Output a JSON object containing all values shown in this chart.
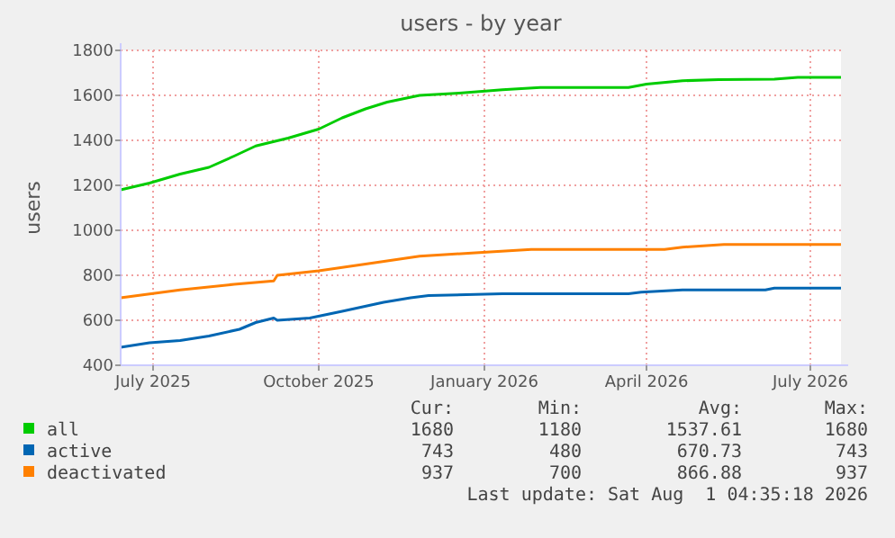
{
  "chart_data": {
    "type": "line",
    "title": "users - by year",
    "ylabel": "users",
    "xlim": [
      "2025-06-27",
      "2026-08-01"
    ],
    "xticks": [
      {
        "value": "2025-07-15",
        "label": "July 2025"
      },
      {
        "value": "2025-10-15",
        "label": "October 2025"
      },
      {
        "value": "2026-01-15",
        "label": "January 2026"
      },
      {
        "value": "2026-04-15",
        "label": "April 2026"
      },
      {
        "value": "2026-07-15",
        "label": "July 2026"
      }
    ],
    "ylim": [
      400,
      1800
    ],
    "yticks": [
      400,
      600,
      800,
      1000,
      1200,
      1400,
      1600,
      1800
    ],
    "grid": true,
    "legend": "bottom",
    "line_style": "solid",
    "series": [
      {
        "name": "all",
        "color": "#00cc00",
        "x": [
          "2025-06-27",
          "2025-07-13",
          "2025-07-30",
          "2025-08-15",
          "2025-08-29",
          "2025-09-10",
          "2025-09-28",
          "2025-10-15",
          "2025-10-28",
          "2025-11-10",
          "2025-11-22",
          "2025-12-10",
          "2026-01-01",
          "2026-01-25",
          "2026-02-15",
          "2026-04-05",
          "2026-04-15",
          "2026-05-05",
          "2026-05-25",
          "2026-06-25",
          "2026-07-08",
          "2026-08-01"
        ],
        "values": [
          1180,
          1210,
          1250,
          1280,
          1330,
          1375,
          1410,
          1450,
          1500,
          1540,
          1570,
          1600,
          1610,
          1625,
          1635,
          1635,
          1650,
          1665,
          1670,
          1672,
          1680,
          1680
        ]
      },
      {
        "name": "active",
        "color": "#0066b3",
        "x": [
          "2025-06-27",
          "2025-07-13",
          "2025-07-30",
          "2025-08-15",
          "2025-09-01",
          "2025-09-10",
          "2025-09-20",
          "2025-09-22",
          "2025-10-10",
          "2025-10-28",
          "2025-11-20",
          "2025-12-05",
          "2025-12-15",
          "2026-01-25",
          "2026-04-05",
          "2026-04-12",
          "2026-05-05",
          "2026-06-20",
          "2026-06-25",
          "2026-08-01"
        ],
        "values": [
          480,
          500,
          510,
          530,
          560,
          590,
          610,
          600,
          610,
          640,
          680,
          700,
          710,
          718,
          718,
          725,
          735,
          735,
          743,
          743
        ]
      },
      {
        "name": "deactivated",
        "color": "#ff8000",
        "x": [
          "2025-06-27",
          "2025-07-30",
          "2025-08-29",
          "2025-09-20",
          "2025-09-22",
          "2025-10-15",
          "2025-11-10",
          "2025-12-10",
          "2026-01-10",
          "2026-02-10",
          "2026-04-25",
          "2026-05-05",
          "2026-05-28",
          "2026-08-01"
        ],
        "values": [
          700,
          735,
          760,
          775,
          800,
          820,
          850,
          885,
          900,
          915,
          915,
          925,
          937,
          937
        ]
      }
    ],
    "annotations": [
      "Cur:",
      "Min:",
      "Avg:",
      "Max:",
      "1680",
      "1180",
      "1537.61",
      "1680",
      "743",
      "480",
      "670.73",
      "743",
      "937",
      "700",
      "866.88",
      "937",
      "Last update: Sat Aug  1 04:35:18 2026"
    ]
  }
}
